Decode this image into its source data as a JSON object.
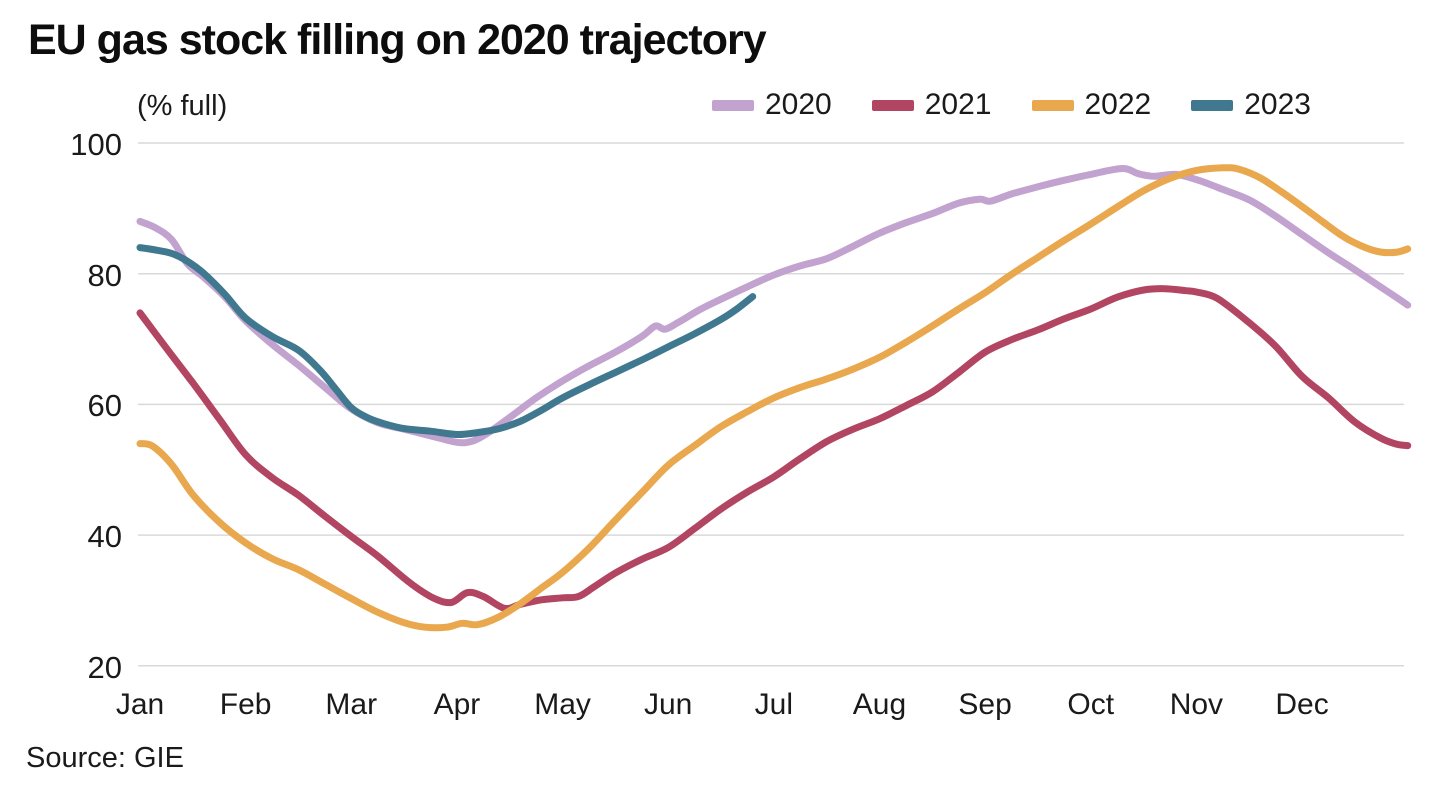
{
  "title": "EU gas stock filling on 2020 trajectory",
  "unit_label": "(% full)",
  "source": "Source: GIE",
  "legend": [
    {
      "label": "2020",
      "color": "#c2a2cf"
    },
    {
      "label": "2021",
      "color": "#b14562"
    },
    {
      "label": "2022",
      "color": "#e9a74e"
    },
    {
      "label": "2023",
      "color": "#3f788f"
    }
  ],
  "colors": {
    "grid": "#d9d9d9",
    "text": "#1a1a1a",
    "title": "#0d0d0d"
  },
  "chart_data": {
    "type": "line",
    "title": "EU gas stock filling on 2020 trajectory",
    "ylabel": "(% full)",
    "xlabel": "",
    "x_tick_labels": [
      "Jan",
      "Feb",
      "Mar",
      "Apr",
      "May",
      "Jun",
      "Jul",
      "Aug",
      "Sep",
      "Oct",
      "Nov",
      "Dec"
    ],
    "y_ticks": [
      100,
      80,
      60,
      40,
      20
    ],
    "ylim": [
      20,
      100
    ],
    "xlim_months": [
      0,
      12
    ],
    "grid": "horizontal",
    "legend_position": "top-right",
    "series": [
      {
        "name": "2020",
        "color": "#c2a2cf",
        "points": [
          [
            0,
            88
          ],
          [
            0.15,
            87
          ],
          [
            0.3,
            85.2
          ],
          [
            0.45,
            81.5
          ],
          [
            0.6,
            79.5
          ],
          [
            0.8,
            76.5
          ],
          [
            1.0,
            72.8
          ],
          [
            1.25,
            69.2
          ],
          [
            1.5,
            66
          ],
          [
            1.75,
            62.6
          ],
          [
            2.0,
            59.3
          ],
          [
            2.25,
            57.2
          ],
          [
            2.5,
            56.2
          ],
          [
            2.75,
            55.2
          ],
          [
            3.0,
            54.2
          ],
          [
            3.15,
            54.4
          ],
          [
            3.3,
            55.7
          ],
          [
            3.5,
            58
          ],
          [
            3.75,
            61
          ],
          [
            4.0,
            63.6
          ],
          [
            4.25,
            65.9
          ],
          [
            4.5,
            68
          ],
          [
            4.75,
            70.4
          ],
          [
            4.88,
            72.0
          ],
          [
            4.97,
            71.5
          ],
          [
            5.1,
            72.6
          ],
          [
            5.3,
            74.5
          ],
          [
            5.5,
            76.1
          ],
          [
            5.75,
            78
          ],
          [
            6.0,
            79.8
          ],
          [
            6.25,
            81.2
          ],
          [
            6.5,
            82.3
          ],
          [
            6.75,
            84.2
          ],
          [
            7.0,
            86.2
          ],
          [
            7.25,
            87.8
          ],
          [
            7.5,
            89.2
          ],
          [
            7.75,
            90.8
          ],
          [
            7.95,
            91.4
          ],
          [
            8.05,
            91.1
          ],
          [
            8.25,
            92.2
          ],
          [
            8.5,
            93.3
          ],
          [
            8.75,
            94.3
          ],
          [
            9.0,
            95.2
          ],
          [
            9.3,
            96.1
          ],
          [
            9.45,
            95.3
          ],
          [
            9.6,
            94.9
          ],
          [
            9.8,
            95.2
          ],
          [
            10.0,
            94.4
          ],
          [
            10.25,
            92.9
          ],
          [
            10.5,
            91.3
          ],
          [
            10.75,
            88.8
          ],
          [
            11.0,
            86.0
          ],
          [
            11.25,
            83.2
          ],
          [
            11.5,
            80.6
          ],
          [
            11.75,
            77.9
          ],
          [
            11.9,
            76.3
          ],
          [
            12.0,
            75.2
          ]
        ]
      },
      {
        "name": "2021",
        "color": "#b14562",
        "points": [
          [
            0,
            74
          ],
          [
            0.25,
            68.6
          ],
          [
            0.5,
            63.3
          ],
          [
            0.75,
            57.8
          ],
          [
            1.0,
            52.3
          ],
          [
            1.25,
            48.8
          ],
          [
            1.5,
            46.1
          ],
          [
            1.75,
            42.9
          ],
          [
            2.0,
            39.8
          ],
          [
            2.25,
            36.8
          ],
          [
            2.5,
            33.4
          ],
          [
            2.65,
            31.6
          ],
          [
            2.8,
            30.2
          ],
          [
            2.95,
            29.7
          ],
          [
            3.1,
            31.2
          ],
          [
            3.25,
            30.6
          ],
          [
            3.45,
            28.8
          ],
          [
            3.6,
            29.4
          ],
          [
            3.8,
            30.1
          ],
          [
            4.0,
            30.4
          ],
          [
            4.15,
            30.6
          ],
          [
            4.3,
            32.1
          ],
          [
            4.5,
            34.2
          ],
          [
            4.75,
            36.3
          ],
          [
            5.0,
            38.1
          ],
          [
            5.25,
            41
          ],
          [
            5.5,
            44
          ],
          [
            5.75,
            46.6
          ],
          [
            6.0,
            48.9
          ],
          [
            6.25,
            51.7
          ],
          [
            6.5,
            54.3
          ],
          [
            6.75,
            56.2
          ],
          [
            7.0,
            57.8
          ],
          [
            7.25,
            59.8
          ],
          [
            7.5,
            61.9
          ],
          [
            7.75,
            64.9
          ],
          [
            8.0,
            68
          ],
          [
            8.25,
            69.9
          ],
          [
            8.5,
            71.4
          ],
          [
            8.75,
            73.1
          ],
          [
            9.0,
            74.6
          ],
          [
            9.25,
            76.4
          ],
          [
            9.5,
            77.5
          ],
          [
            9.7,
            77.7
          ],
          [
            9.9,
            77.4
          ],
          [
            10.0,
            77.2
          ],
          [
            10.2,
            76.2
          ],
          [
            10.5,
            72.5
          ],
          [
            10.75,
            68.9
          ],
          [
            11.0,
            64.3
          ],
          [
            11.25,
            61
          ],
          [
            11.5,
            57.3
          ],
          [
            11.75,
            54.8
          ],
          [
            11.9,
            53.9
          ],
          [
            12.0,
            53.7
          ]
        ]
      },
      {
        "name": "2022",
        "color": "#e9a74e",
        "points": [
          [
            0,
            54
          ],
          [
            0.12,
            53.6
          ],
          [
            0.3,
            50.8
          ],
          [
            0.5,
            46.2
          ],
          [
            0.75,
            42
          ],
          [
            1.0,
            38.8
          ],
          [
            1.25,
            36.4
          ],
          [
            1.5,
            34.7
          ],
          [
            1.75,
            32.5
          ],
          [
            2.0,
            30.3
          ],
          [
            2.25,
            28.2
          ],
          [
            2.5,
            26.6
          ],
          [
            2.7,
            25.9
          ],
          [
            2.9,
            25.9
          ],
          [
            3.05,
            26.5
          ],
          [
            3.2,
            26.3
          ],
          [
            3.4,
            27.5
          ],
          [
            3.6,
            29.5
          ],
          [
            3.8,
            31.9
          ],
          [
            4.0,
            34.3
          ],
          [
            4.25,
            38
          ],
          [
            4.5,
            42.3
          ],
          [
            4.75,
            46.5
          ],
          [
            5.0,
            50.7
          ],
          [
            5.25,
            53.7
          ],
          [
            5.5,
            56.6
          ],
          [
            5.75,
            58.9
          ],
          [
            6.0,
            61
          ],
          [
            6.25,
            62.6
          ],
          [
            6.5,
            63.9
          ],
          [
            6.75,
            65.4
          ],
          [
            7.0,
            67.2
          ],
          [
            7.25,
            69.5
          ],
          [
            7.5,
            72
          ],
          [
            7.75,
            74.6
          ],
          [
            8.0,
            77.1
          ],
          [
            8.25,
            79.9
          ],
          [
            8.5,
            82.5
          ],
          [
            8.75,
            85.1
          ],
          [
            9.0,
            87.6
          ],
          [
            9.25,
            90.2
          ],
          [
            9.5,
            92.7
          ],
          [
            9.75,
            94.6
          ],
          [
            10.0,
            95.8
          ],
          [
            10.25,
            96.2
          ],
          [
            10.4,
            96.0
          ],
          [
            10.6,
            94.7
          ],
          [
            10.8,
            92.6
          ],
          [
            11.0,
            90.3
          ],
          [
            11.2,
            87.9
          ],
          [
            11.4,
            85.6
          ],
          [
            11.6,
            84.0
          ],
          [
            11.75,
            83.3
          ],
          [
            11.9,
            83.3
          ],
          [
            12.0,
            83.8
          ]
        ]
      },
      {
        "name": "2023",
        "color": "#3f788f",
        "points": [
          [
            0,
            84
          ],
          [
            0.12,
            83.7
          ],
          [
            0.3,
            83.1
          ],
          [
            0.45,
            81.9
          ],
          [
            0.6,
            80.1
          ],
          [
            0.8,
            76.9
          ],
          [
            1.0,
            73.2
          ],
          [
            1.25,
            70.4
          ],
          [
            1.5,
            68.3
          ],
          [
            1.7,
            65.3
          ],
          [
            1.85,
            62.4
          ],
          [
            2.0,
            59.5
          ],
          [
            2.15,
            58
          ],
          [
            2.3,
            57.1
          ],
          [
            2.5,
            56.3
          ],
          [
            2.75,
            55.9
          ],
          [
            3.0,
            55.4
          ],
          [
            3.2,
            55.7
          ],
          [
            3.4,
            56.3
          ],
          [
            3.6,
            57.4
          ],
          [
            3.8,
            59.1
          ],
          [
            4.0,
            61
          ],
          [
            4.25,
            63
          ],
          [
            4.5,
            64.9
          ],
          [
            4.75,
            66.8
          ],
          [
            5.0,
            68.8
          ],
          [
            5.25,
            70.8
          ],
          [
            5.5,
            73
          ],
          [
            5.65,
            74.6
          ],
          [
            5.8,
            76.5
          ]
        ]
      }
    ]
  }
}
